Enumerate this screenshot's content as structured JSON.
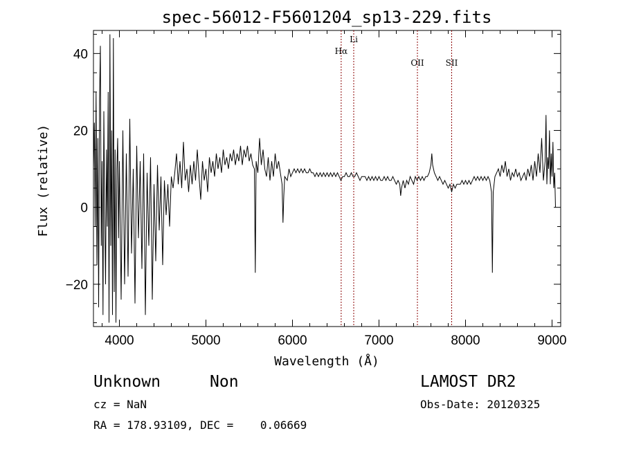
{
  "chart_data": {
    "type": "line",
    "title": "spec-56012-F5601204_sp13-229.fits",
    "xlabel": "Wavelength (Å)",
    "ylabel": "Flux (relative)",
    "xlim": [
      3700,
      9100
    ],
    "ylim": [
      -31,
      46
    ],
    "xticks": [
      4000,
      5000,
      6000,
      7000,
      8000,
      9000
    ],
    "yticks": [
      -20,
      0,
      20,
      40
    ],
    "ytick_labels": [
      "−20",
      "0",
      "20",
      "40"
    ],
    "grid": false,
    "line_color": "#000000",
    "marker_color": "#8b0000",
    "line_markers": [
      {
        "label": "Hα",
        "x": 6563
      },
      {
        "label": "Li",
        "x": 6708
      },
      {
        "label": "OII",
        "x": 7444
      },
      {
        "label": "SII",
        "x": 7840
      }
    ],
    "series": [
      {
        "values": [
          [
            3700,
            10
          ],
          [
            3710,
            22
          ],
          [
            3720,
            -5
          ],
          [
            3730,
            30
          ],
          [
            3740,
            -15
          ],
          [
            3750,
            18
          ],
          [
            3760,
            -26
          ],
          [
            3770,
            28
          ],
          [
            3780,
            42
          ],
          [
            3790,
            -10
          ],
          [
            3800,
            12
          ],
          [
            3810,
            -28
          ],
          [
            3820,
            25
          ],
          [
            3830,
            -2
          ],
          [
            3840,
            -20
          ],
          [
            3850,
            15
          ],
          [
            3860,
            -5
          ],
          [
            3870,
            30
          ],
          [
            3880,
            -30
          ],
          [
            3890,
            45
          ],
          [
            3900,
            -10
          ],
          [
            3910,
            20
          ],
          [
            3920,
            -28
          ],
          [
            3930,
            44
          ],
          [
            3940,
            -22
          ],
          [
            3950,
            15
          ],
          [
            3960,
            -30
          ],
          [
            3970,
            10
          ],
          [
            3980,
            18
          ],
          [
            3990,
            -8
          ],
          [
            4000,
            12
          ],
          [
            4020,
            -24
          ],
          [
            4040,
            20
          ],
          [
            4060,
            -20
          ],
          [
            4080,
            14
          ],
          [
            4100,
            -18
          ],
          [
            4120,
            23
          ],
          [
            4140,
            -12
          ],
          [
            4160,
            10
          ],
          [
            4180,
            -25
          ],
          [
            4200,
            16
          ],
          [
            4220,
            -8
          ],
          [
            4240,
            12
          ],
          [
            4260,
            -16
          ],
          [
            4280,
            14
          ],
          [
            4300,
            -28
          ],
          [
            4320,
            9
          ],
          [
            4340,
            -10
          ],
          [
            4360,
            13
          ],
          [
            4380,
            -24
          ],
          [
            4400,
            6
          ],
          [
            4420,
            -14
          ],
          [
            4440,
            11
          ],
          [
            4460,
            -6
          ],
          [
            4480,
            8
          ],
          [
            4500,
            -15
          ],
          [
            4520,
            7
          ],
          [
            4540,
            -2
          ],
          [
            4560,
            6
          ],
          [
            4580,
            -5
          ],
          [
            4600,
            8
          ],
          [
            4620,
            5
          ],
          [
            4640,
            9
          ],
          [
            4660,
            14
          ],
          [
            4680,
            6
          ],
          [
            4700,
            12
          ],
          [
            4720,
            5
          ],
          [
            4740,
            17
          ],
          [
            4760,
            7
          ],
          [
            4780,
            10
          ],
          [
            4800,
            4
          ],
          [
            4820,
            11
          ],
          [
            4840,
            6
          ],
          [
            4860,
            12
          ],
          [
            4880,
            7
          ],
          [
            4900,
            15
          ],
          [
            4920,
            8
          ],
          [
            4940,
            2
          ],
          [
            4960,
            12
          ],
          [
            4980,
            7
          ],
          [
            5000,
            10
          ],
          [
            5020,
            4
          ],
          [
            5040,
            13
          ],
          [
            5060,
            9
          ],
          [
            5080,
            12
          ],
          [
            5100,
            8
          ],
          [
            5120,
            14
          ],
          [
            5140,
            10
          ],
          [
            5160,
            13
          ],
          [
            5180,
            9
          ],
          [
            5200,
            15
          ],
          [
            5220,
            11
          ],
          [
            5240,
            13
          ],
          [
            5260,
            10
          ],
          [
            5280,
            14
          ],
          [
            5300,
            12
          ],
          [
            5320,
            15
          ],
          [
            5340,
            11
          ],
          [
            5360,
            14
          ],
          [
            5380,
            12
          ],
          [
            5400,
            16
          ],
          [
            5420,
            11
          ],
          [
            5440,
            15
          ],
          [
            5460,
            13
          ],
          [
            5480,
            16
          ],
          [
            5500,
            12
          ],
          [
            5520,
            14
          ],
          [
            5540,
            11
          ],
          [
            5560,
            10
          ],
          [
            5570,
            -17
          ],
          [
            5580,
            12
          ],
          [
            5600,
            9
          ],
          [
            5620,
            18
          ],
          [
            5640,
            11
          ],
          [
            5660,
            15
          ],
          [
            5680,
            10
          ],
          [
            5700,
            8
          ],
          [
            5720,
            13
          ],
          [
            5740,
            7
          ],
          [
            5760,
            12
          ],
          [
            5780,
            8
          ],
          [
            5800,
            14
          ],
          [
            5820,
            10
          ],
          [
            5840,
            12
          ],
          [
            5860,
            9
          ],
          [
            5880,
            6
          ],
          [
            5890,
            -4
          ],
          [
            5900,
            3
          ],
          [
            5910,
            8
          ],
          [
            5940,
            7
          ],
          [
            5960,
            10
          ],
          [
            5980,
            8
          ],
          [
            6000,
            9
          ],
          [
            6020,
            10
          ],
          [
            6040,
            9
          ],
          [
            6060,
            10
          ],
          [
            6080,
            9
          ],
          [
            6100,
            10
          ],
          [
            6120,
            9
          ],
          [
            6140,
            10
          ],
          [
            6160,
            9
          ],
          [
            6180,
            9
          ],
          [
            6200,
            10
          ],
          [
            6220,
            9
          ],
          [
            6240,
            9
          ],
          [
            6260,
            8
          ],
          [
            6280,
            9
          ],
          [
            6300,
            8
          ],
          [
            6320,
            9
          ],
          [
            6340,
            8
          ],
          [
            6360,
            9
          ],
          [
            6380,
            8
          ],
          [
            6400,
            9
          ],
          [
            6420,
            8
          ],
          [
            6440,
            9
          ],
          [
            6460,
            8
          ],
          [
            6480,
            9
          ],
          [
            6500,
            8
          ],
          [
            6520,
            9
          ],
          [
            6540,
            8
          ],
          [
            6560,
            7
          ],
          [
            6580,
            8
          ],
          [
            6600,
            8
          ],
          [
            6620,
            9
          ],
          [
            6640,
            8
          ],
          [
            6660,
            8
          ],
          [
            6680,
            9
          ],
          [
            6700,
            8
          ],
          [
            6720,
            8
          ],
          [
            6740,
            9
          ],
          [
            6760,
            8
          ],
          [
            6780,
            7
          ],
          [
            6800,
            8
          ],
          [
            6820,
            8
          ],
          [
            6840,
            8
          ],
          [
            6860,
            7
          ],
          [
            6880,
            8
          ],
          [
            6900,
            7
          ],
          [
            6920,
            8
          ],
          [
            6940,
            7
          ],
          [
            6960,
            8
          ],
          [
            6980,
            7
          ],
          [
            7000,
            8
          ],
          [
            7020,
            7
          ],
          [
            7040,
            7
          ],
          [
            7060,
            8
          ],
          [
            7080,
            7
          ],
          [
            7100,
            8
          ],
          [
            7120,
            7
          ],
          [
            7140,
            7
          ],
          [
            7160,
            8
          ],
          [
            7180,
            7
          ],
          [
            7200,
            6
          ],
          [
            7220,
            7
          ],
          [
            7240,
            6
          ],
          [
            7250,
            3
          ],
          [
            7260,
            5
          ],
          [
            7280,
            7
          ],
          [
            7300,
            5
          ],
          [
            7320,
            7
          ],
          [
            7340,
            6
          ],
          [
            7360,
            8
          ],
          [
            7380,
            7
          ],
          [
            7400,
            6
          ],
          [
            7420,
            8
          ],
          [
            7440,
            7
          ],
          [
            7460,
            8
          ],
          [
            7480,
            7
          ],
          [
            7500,
            8
          ],
          [
            7520,
            7
          ],
          [
            7540,
            8
          ],
          [
            7560,
            8
          ],
          [
            7580,
            9
          ],
          [
            7600,
            11
          ],
          [
            7610,
            14
          ],
          [
            7620,
            11
          ],
          [
            7640,
            9
          ],
          [
            7660,
            8
          ],
          [
            7680,
            7
          ],
          [
            7700,
            8
          ],
          [
            7720,
            7
          ],
          [
            7740,
            6
          ],
          [
            7760,
            7
          ],
          [
            7780,
            6
          ],
          [
            7800,
            5
          ],
          [
            7820,
            6
          ],
          [
            7840,
            4
          ],
          [
            7860,
            6
          ],
          [
            7880,
            5
          ],
          [
            7900,
            6
          ],
          [
            7920,
            6
          ],
          [
            7940,
            6
          ],
          [
            7960,
            7
          ],
          [
            7980,
            6
          ],
          [
            8000,
            7
          ],
          [
            8020,
            6
          ],
          [
            8040,
            7
          ],
          [
            8060,
            6
          ],
          [
            8080,
            7
          ],
          [
            8100,
            8
          ],
          [
            8120,
            7
          ],
          [
            8140,
            8
          ],
          [
            8160,
            7
          ],
          [
            8180,
            8
          ],
          [
            8200,
            7
          ],
          [
            8220,
            8
          ],
          [
            8240,
            7
          ],
          [
            8260,
            8
          ],
          [
            8280,
            7
          ],
          [
            8300,
            4
          ],
          [
            8310,
            -17
          ],
          [
            8320,
            4
          ],
          [
            8340,
            8
          ],
          [
            8360,
            9
          ],
          [
            8380,
            10
          ],
          [
            8400,
            8
          ],
          [
            8420,
            11
          ],
          [
            8440,
            9
          ],
          [
            8460,
            12
          ],
          [
            8480,
            8
          ],
          [
            8500,
            10
          ],
          [
            8520,
            7
          ],
          [
            8540,
            9
          ],
          [
            8560,
            8
          ],
          [
            8580,
            10
          ],
          [
            8600,
            8
          ],
          [
            8620,
            9
          ],
          [
            8640,
            7
          ],
          [
            8660,
            8
          ],
          [
            8680,
            9
          ],
          [
            8700,
            7
          ],
          [
            8720,
            10
          ],
          [
            8740,
            8
          ],
          [
            8760,
            11
          ],
          [
            8780,
            7
          ],
          [
            8800,
            12
          ],
          [
            8820,
            8
          ],
          [
            8840,
            14
          ],
          [
            8860,
            9
          ],
          [
            8880,
            18
          ],
          [
            8900,
            7
          ],
          [
            8920,
            12
          ],
          [
            8930,
            24
          ],
          [
            8940,
            6
          ],
          [
            8950,
            13
          ],
          [
            8960,
            10
          ],
          [
            8970,
            20
          ],
          [
            8980,
            6
          ],
          [
            8990,
            14
          ],
          [
            9000,
            8
          ],
          [
            9010,
            17
          ],
          [
            9020,
            5
          ],
          [
            9030,
            9
          ],
          [
            9040,
            0
          ]
        ]
      }
    ]
  },
  "footer": {
    "object_class": "Unknown",
    "object_subclass": "Non",
    "survey": "LAMOST DR2",
    "cz": "cz = NaN",
    "obs_date": "Obs-Date: 20120325",
    "coords": "RA = 178.93109, DEC =    0.06669"
  }
}
